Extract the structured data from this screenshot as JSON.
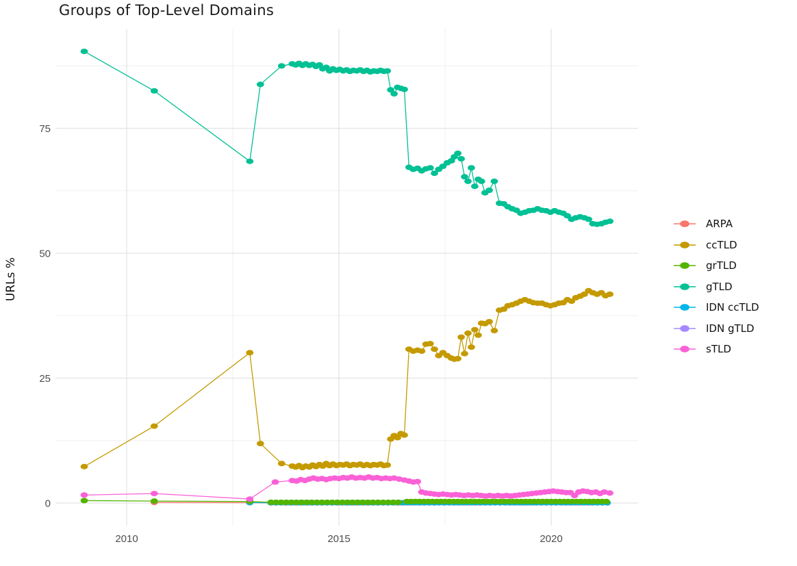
{
  "chart_data": {
    "type": "line",
    "title": "Groups of Top-Level Domains",
    "xlabel": "",
    "ylabel": "URLs %",
    "x_ticks": [
      2010,
      2015,
      2020
    ],
    "x_minor_ticks": [
      2012.5,
      2017.5
    ],
    "y_ticks": [
      0,
      25,
      50,
      75
    ],
    "y_minor_ticks": [
      12.5,
      37.5,
      62.5,
      87.5
    ],
    "xlim": [
      2008.4,
      2022.0
    ],
    "ylim": [
      -4.5,
      95
    ],
    "grid": "on",
    "legend_position": "right",
    "colors": {
      "major_grid": "#e3e3e3",
      "minor_grid": "#efefef",
      "tick_text": "#4d4d4d",
      "title_text": "#1a1a1a"
    },
    "draw_order": [
      "ARPA",
      "IDN gTLD",
      "IDN ccTLD",
      "grTLD",
      "sTLD",
      "ccTLD",
      "gTLD"
    ],
    "series": [
      {
        "name": "ARPA",
        "color": "#F8766D",
        "points": [
          [
            2010.65,
            0.12
          ],
          [
            2012.9,
            0.07
          ]
        ],
        "flat_runs": [
          {
            "from": 2013.4,
            "to": 2021.38,
            "step": 0.12,
            "value": 0.03
          }
        ]
      },
      {
        "name": "ccTLD",
        "color": "#C49A00",
        "points": [
          [
            2009.0,
            7.3
          ],
          [
            2010.65,
            15.4
          ],
          [
            2012.9,
            30.1
          ],
          [
            2013.15,
            11.9
          ],
          [
            2013.65,
            7.9
          ],
          [
            2013.9,
            7.4
          ],
          [
            2013.98,
            7.2
          ],
          [
            2014.06,
            7.5
          ],
          [
            2014.14,
            7.1
          ],
          [
            2014.22,
            7.4
          ],
          [
            2014.3,
            7.2
          ],
          [
            2014.38,
            7.6
          ],
          [
            2014.46,
            7.3
          ],
          [
            2014.54,
            7.7
          ],
          [
            2014.62,
            7.4
          ],
          [
            2014.7,
            7.9
          ],
          [
            2014.78,
            7.5
          ],
          [
            2014.86,
            7.8
          ],
          [
            2014.94,
            7.5
          ],
          [
            2015.02,
            7.7
          ],
          [
            2015.1,
            7.6
          ],
          [
            2015.18,
            7.8
          ],
          [
            2015.26,
            7.5
          ],
          [
            2015.34,
            7.7
          ],
          [
            2015.42,
            7.6
          ],
          [
            2015.5,
            7.8
          ],
          [
            2015.58,
            7.5
          ],
          [
            2015.66,
            7.7
          ],
          [
            2015.74,
            7.5
          ],
          [
            2015.82,
            7.7
          ],
          [
            2015.9,
            7.6
          ],
          [
            2015.98,
            7.8
          ],
          [
            2016.06,
            7.5
          ],
          [
            2016.14,
            7.6
          ],
          [
            2016.22,
            12.8
          ],
          [
            2016.3,
            13.5
          ],
          [
            2016.38,
            13.1
          ],
          [
            2016.46,
            13.9
          ],
          [
            2016.54,
            13.6
          ],
          [
            2016.65,
            30.8
          ],
          [
            2016.75,
            30.4
          ],
          [
            2016.85,
            30.6
          ],
          [
            2016.95,
            30.4
          ],
          [
            2017.05,
            31.8
          ],
          [
            2017.15,
            31.9
          ],
          [
            2017.25,
            30.8
          ],
          [
            2017.35,
            29.5
          ],
          [
            2017.45,
            30.1
          ],
          [
            2017.55,
            29.5
          ],
          [
            2017.65,
            29.0
          ],
          [
            2017.72,
            28.8
          ],
          [
            2017.8,
            28.9
          ],
          [
            2017.88,
            33.2
          ],
          [
            2017.96,
            29.9
          ],
          [
            2018.04,
            34.0
          ],
          [
            2018.12,
            31.2
          ],
          [
            2018.2,
            34.7
          ],
          [
            2018.28,
            33.6
          ],
          [
            2018.36,
            36.0
          ],
          [
            2018.44,
            35.9
          ],
          [
            2018.54,
            36.3
          ],
          [
            2018.66,
            34.5
          ],
          [
            2018.78,
            38.6
          ],
          [
            2018.88,
            38.8
          ],
          [
            2018.98,
            39.5
          ],
          [
            2019.08,
            39.7
          ],
          [
            2019.18,
            40.0
          ],
          [
            2019.28,
            40.4
          ],
          [
            2019.38,
            40.7
          ],
          [
            2019.48,
            40.4
          ],
          [
            2019.58,
            40.1
          ],
          [
            2019.68,
            40.0
          ],
          [
            2019.78,
            40.0
          ],
          [
            2019.88,
            39.7
          ],
          [
            2019.98,
            39.5
          ],
          [
            2020.08,
            39.7
          ],
          [
            2020.18,
            40.0
          ],
          [
            2020.28,
            40.1
          ],
          [
            2020.38,
            40.7
          ],
          [
            2020.48,
            40.4
          ],
          [
            2020.58,
            41.1
          ],
          [
            2020.68,
            41.4
          ],
          [
            2020.78,
            41.8
          ],
          [
            2020.88,
            42.5
          ],
          [
            2020.98,
            42.1
          ],
          [
            2021.08,
            41.8
          ],
          [
            2021.18,
            42.1
          ],
          [
            2021.28,
            41.5
          ],
          [
            2021.38,
            41.8
          ]
        ]
      },
      {
        "name": "grTLD",
        "color": "#53B400",
        "points": [
          [
            2009.0,
            0.5
          ],
          [
            2010.65,
            0.4
          ],
          [
            2012.9,
            0.3
          ]
        ],
        "flat_runs": [
          {
            "from": 2013.4,
            "to": 2016.5,
            "step": 0.12,
            "value": 0.15
          },
          {
            "from": 2016.6,
            "to": 2021.38,
            "step": 0.1,
            "value": 0.3
          }
        ]
      },
      {
        "name": "gTLD",
        "color": "#00C094",
        "points": [
          [
            2009.0,
            90.4
          ],
          [
            2010.65,
            82.5
          ],
          [
            2012.9,
            68.4
          ],
          [
            2013.15,
            83.8
          ],
          [
            2013.65,
            87.5
          ],
          [
            2013.9,
            87.9
          ],
          [
            2013.98,
            87.7
          ],
          [
            2014.06,
            88.0
          ],
          [
            2014.14,
            87.6
          ],
          [
            2014.22,
            87.9
          ],
          [
            2014.3,
            87.6
          ],
          [
            2014.38,
            87.8
          ],
          [
            2014.46,
            87.4
          ],
          [
            2014.54,
            87.7
          ],
          [
            2014.62,
            86.9
          ],
          [
            2014.7,
            87.2
          ],
          [
            2014.78,
            86.5
          ],
          [
            2014.86,
            86.9
          ],
          [
            2014.94,
            86.6
          ],
          [
            2015.02,
            86.8
          ],
          [
            2015.1,
            86.5
          ],
          [
            2015.18,
            86.7
          ],
          [
            2015.26,
            86.4
          ],
          [
            2015.34,
            86.6
          ],
          [
            2015.42,
            86.5
          ],
          [
            2015.5,
            86.7
          ],
          [
            2015.58,
            86.4
          ],
          [
            2015.66,
            86.6
          ],
          [
            2015.74,
            86.3
          ],
          [
            2015.82,
            86.5
          ],
          [
            2015.9,
            86.4
          ],
          [
            2015.98,
            86.6
          ],
          [
            2016.06,
            86.4
          ],
          [
            2016.14,
            86.5
          ],
          [
            2016.22,
            82.7
          ],
          [
            2016.3,
            81.9
          ],
          [
            2016.38,
            83.2
          ],
          [
            2016.46,
            83.0
          ],
          [
            2016.54,
            82.8
          ],
          [
            2016.65,
            67.2
          ],
          [
            2016.75,
            66.8
          ],
          [
            2016.85,
            67.0
          ],
          [
            2016.95,
            66.5
          ],
          [
            2017.05,
            66.9
          ],
          [
            2017.15,
            67.1
          ],
          [
            2017.25,
            66.0
          ],
          [
            2017.35,
            66.8
          ],
          [
            2017.45,
            67.4
          ],
          [
            2017.55,
            68.1
          ],
          [
            2017.65,
            68.5
          ],
          [
            2017.72,
            69.3
          ],
          [
            2017.8,
            70.0
          ],
          [
            2017.88,
            68.9
          ],
          [
            2017.96,
            65.3
          ],
          [
            2018.04,
            64.4
          ],
          [
            2018.12,
            67.1
          ],
          [
            2018.2,
            63.4
          ],
          [
            2018.28,
            64.8
          ],
          [
            2018.36,
            64.4
          ],
          [
            2018.44,
            62.1
          ],
          [
            2018.54,
            62.6
          ],
          [
            2018.66,
            64.4
          ],
          [
            2018.78,
            60.0
          ],
          [
            2018.88,
            59.9
          ],
          [
            2018.98,
            59.3
          ],
          [
            2019.08,
            58.9
          ],
          [
            2019.18,
            58.6
          ],
          [
            2019.28,
            58.0
          ],
          [
            2019.38,
            58.2
          ],
          [
            2019.48,
            58.5
          ],
          [
            2019.58,
            58.6
          ],
          [
            2019.68,
            58.9
          ],
          [
            2019.78,
            58.6
          ],
          [
            2019.88,
            58.5
          ],
          [
            2019.98,
            58.2
          ],
          [
            2020.08,
            58.5
          ],
          [
            2020.18,
            58.2
          ],
          [
            2020.28,
            58.0
          ],
          [
            2020.38,
            57.5
          ],
          [
            2020.48,
            56.8
          ],
          [
            2020.58,
            57.1
          ],
          [
            2020.68,
            57.3
          ],
          [
            2020.78,
            57.1
          ],
          [
            2020.88,
            56.8
          ],
          [
            2020.98,
            55.9
          ],
          [
            2021.08,
            55.8
          ],
          [
            2021.18,
            55.9
          ],
          [
            2021.28,
            56.2
          ],
          [
            2021.38,
            56.4
          ]
        ]
      },
      {
        "name": "IDN ccTLD",
        "color": "#00B6EB",
        "points": [
          [
            2012.9,
            0.1
          ]
        ],
        "flat_runs": [
          {
            "from": 2013.4,
            "to": 2021.38,
            "step": 0.11,
            "value": 0.05
          }
        ]
      },
      {
        "name": "IDN gTLD",
        "color": "#A58AFF",
        "points": [],
        "flat_runs": [
          {
            "from": 2016.6,
            "to": 2021.38,
            "step": 0.1,
            "value": 0.1
          }
        ]
      },
      {
        "name": "sTLD",
        "color": "#FB61D7",
        "points": [
          [
            2009.0,
            1.6
          ],
          [
            2010.65,
            1.9
          ],
          [
            2012.9,
            0.8
          ],
          [
            2013.5,
            4.2
          ],
          [
            2013.9,
            4.5
          ],
          [
            2014.0,
            4.4
          ],
          [
            2014.1,
            4.7
          ],
          [
            2014.2,
            4.5
          ],
          [
            2014.3,
            4.8
          ],
          [
            2014.4,
            5.0
          ],
          [
            2014.5,
            4.8
          ],
          [
            2014.6,
            4.9
          ],
          [
            2014.7,
            4.7
          ],
          [
            2014.8,
            4.9
          ],
          [
            2014.9,
            5.0
          ],
          [
            2015.0,
            4.9
          ],
          [
            2015.1,
            5.1
          ],
          [
            2015.2,
            5.0
          ],
          [
            2015.3,
            5.2
          ],
          [
            2015.4,
            5.0
          ],
          [
            2015.5,
            5.1
          ],
          [
            2015.6,
            5.0
          ],
          [
            2015.7,
            5.2
          ],
          [
            2015.8,
            5.0
          ],
          [
            2015.9,
            5.1
          ],
          [
            2016.0,
            4.9
          ],
          [
            2016.1,
            5.0
          ],
          [
            2016.2,
            4.9
          ],
          [
            2016.3,
            5.0
          ],
          [
            2016.42,
            4.8
          ],
          [
            2016.54,
            4.6
          ],
          [
            2016.65,
            4.4
          ],
          [
            2016.75,
            4.2
          ],
          [
            2016.85,
            4.3
          ],
          [
            2016.95,
            2.2
          ],
          [
            2017.05,
            2.0
          ],
          [
            2017.15,
            1.9
          ],
          [
            2017.25,
            1.8
          ],
          [
            2017.35,
            1.7
          ],
          [
            2017.45,
            1.8
          ],
          [
            2017.55,
            1.7
          ],
          [
            2017.65,
            1.6
          ],
          [
            2017.75,
            1.7
          ],
          [
            2017.85,
            1.6
          ],
          [
            2017.95,
            1.5
          ],
          [
            2018.05,
            1.6
          ],
          [
            2018.15,
            1.5
          ],
          [
            2018.25,
            1.6
          ],
          [
            2018.35,
            1.5
          ],
          [
            2018.45,
            1.4
          ],
          [
            2018.55,
            1.5
          ],
          [
            2018.65,
            1.4
          ],
          [
            2018.75,
            1.5
          ],
          [
            2018.85,
            1.4
          ],
          [
            2018.95,
            1.5
          ],
          [
            2019.05,
            1.4
          ],
          [
            2019.15,
            1.5
          ],
          [
            2019.25,
            1.6
          ],
          [
            2019.35,
            1.7
          ],
          [
            2019.45,
            1.8
          ],
          [
            2019.55,
            1.9
          ],
          [
            2019.65,
            2.0
          ],
          [
            2019.75,
            2.1
          ],
          [
            2019.85,
            2.2
          ],
          [
            2019.95,
            2.3
          ],
          [
            2020.05,
            2.4
          ],
          [
            2020.15,
            2.3
          ],
          [
            2020.25,
            2.2
          ],
          [
            2020.35,
            2.1
          ],
          [
            2020.45,
            2.1
          ],
          [
            2020.55,
            1.5
          ],
          [
            2020.65,
            2.2
          ],
          [
            2020.75,
            2.4
          ],
          [
            2020.85,
            2.3
          ],
          [
            2020.95,
            2.1
          ],
          [
            2021.05,
            2.2
          ],
          [
            2021.15,
            1.9
          ],
          [
            2021.25,
            2.2
          ],
          [
            2021.38,
            2.0
          ]
        ]
      }
    ]
  }
}
